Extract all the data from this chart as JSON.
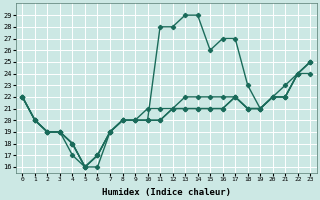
{
  "title": "",
  "xlabel": "Humidex (Indice chaleur)",
  "background_color": "#cce8e4",
  "line_color": "#1a6b5a",
  "grid_color": "#ffffff",
  "xlim": [
    -0.5,
    23.5
  ],
  "ylim": [
    15.5,
    30.0
  ],
  "yticks": [
    16,
    17,
    18,
    19,
    20,
    21,
    22,
    23,
    24,
    25,
    26,
    27,
    28,
    29
  ],
  "xticks": [
    0,
    1,
    2,
    3,
    4,
    5,
    6,
    7,
    8,
    9,
    10,
    11,
    12,
    13,
    14,
    15,
    16,
    17,
    18,
    19,
    20,
    21,
    22,
    23
  ],
  "series": [
    [
      22,
      20,
      19,
      19,
      17,
      16,
      16,
      19,
      20,
      20,
      20,
      28,
      28,
      29,
      29,
      26,
      27,
      27,
      23,
      21,
      22,
      23,
      24,
      25
    ],
    [
      22,
      20,
      19,
      19,
      18,
      16,
      17,
      19,
      20,
      20,
      20,
      20,
      21,
      21,
      21,
      21,
      21,
      22,
      21,
      21,
      22,
      22,
      24,
      24
    ],
    [
      22,
      20,
      19,
      19,
      18,
      16,
      17,
      19,
      20,
      20,
      20,
      20,
      21,
      21,
      21,
      21,
      21,
      22,
      21,
      21,
      22,
      22,
      24,
      25
    ],
    [
      22,
      20,
      19,
      19,
      18,
      16,
      17,
      19,
      20,
      20,
      21,
      21,
      21,
      22,
      22,
      22,
      22,
      22,
      21,
      21,
      22,
      22,
      24,
      25
    ]
  ],
  "marker": "D",
  "markersize": 2.2,
  "linewidth": 1.0
}
